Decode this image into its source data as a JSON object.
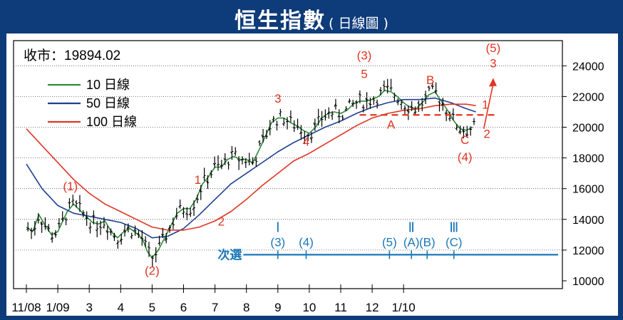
{
  "title": {
    "main": "恒生指數",
    "sub": "( 日線圖 )"
  },
  "close_label": "收市：19894.02",
  "legend": [
    {
      "name": "10 日線",
      "color": "#2e8b3a"
    },
    {
      "name": "50 日線",
      "color": "#1f3f91"
    },
    {
      "name": "100 日線",
      "color": "#e03524"
    }
  ],
  "colors": {
    "background": "#0e3b7a",
    "candle": "#000000",
    "wave_label": "#e03524",
    "timeline": "#1a78b8",
    "resistance": "#e03524"
  },
  "chart_data": {
    "type": "line",
    "x_tick_labels": [
      "11/08",
      "1/09",
      "3",
      "4",
      "5",
      "6",
      "7",
      "8",
      "9",
      "10",
      "11",
      "12",
      "1/10"
    ],
    "ylim": [
      10000,
      25000
    ],
    "y_ticks": [
      10000,
      12000,
      14000,
      16000,
      18000,
      20000,
      22000,
      24000
    ],
    "grid": "horizontal",
    "legend_position": "top-left",
    "close": 19894.02,
    "series": [
      {
        "name": "10 日線",
        "color": "#2e8b3a",
        "width": 1.6,
        "points": [
          [
            0.0,
            13500
          ],
          [
            0.2,
            13200
          ],
          [
            0.4,
            14300
          ],
          [
            0.6,
            13600
          ],
          [
            0.8,
            13000
          ],
          [
            1.0,
            13200
          ],
          [
            1.3,
            14500
          ],
          [
            1.5,
            15000
          ],
          [
            1.7,
            14600
          ],
          [
            1.9,
            14200
          ],
          [
            2.1,
            13800
          ],
          [
            2.3,
            13700
          ],
          [
            2.5,
            13900
          ],
          [
            2.7,
            13200
          ],
          [
            2.9,
            12800
          ],
          [
            3.1,
            13200
          ],
          [
            3.3,
            13400
          ],
          [
            3.5,
            13100
          ],
          [
            3.7,
            12700
          ],
          [
            3.85,
            11900
          ],
          [
            4.0,
            11500
          ],
          [
            4.2,
            12000
          ],
          [
            4.4,
            12800
          ],
          [
            4.6,
            13600
          ],
          [
            4.8,
            14400
          ],
          [
            5.0,
            14700
          ],
          [
            5.2,
            14700
          ],
          [
            5.4,
            15300
          ],
          [
            5.6,
            16300
          ],
          [
            5.8,
            16800
          ],
          [
            6.0,
            17400
          ],
          [
            6.2,
            17400
          ],
          [
            6.4,
            17900
          ],
          [
            6.6,
            18100
          ],
          [
            6.8,
            17900
          ],
          [
            7.0,
            17900
          ],
          [
            7.2,
            17700
          ],
          [
            7.4,
            18500
          ],
          [
            7.6,
            19400
          ],
          [
            7.8,
            20300
          ],
          [
            8.0,
            20600
          ],
          [
            8.2,
            20600
          ],
          [
            8.4,
            20300
          ],
          [
            8.6,
            20100
          ],
          [
            8.8,
            19800
          ],
          [
            9.0,
            19600
          ],
          [
            9.2,
            20000
          ],
          [
            9.4,
            20600
          ],
          [
            9.6,
            20900
          ],
          [
            9.8,
            21000
          ],
          [
            10.0,
            20900
          ],
          [
            10.2,
            21100
          ],
          [
            10.4,
            21500
          ],
          [
            10.6,
            21700
          ],
          [
            10.8,
            21700
          ],
          [
            11.0,
            21800
          ],
          [
            11.2,
            22000
          ],
          [
            11.4,
            22400
          ],
          [
            11.6,
            22300
          ],
          [
            11.8,
            22000
          ],
          [
            12.0,
            21600
          ],
          [
            12.2,
            21300
          ],
          [
            12.4,
            21200
          ],
          [
            12.6,
            21600
          ],
          [
            12.8,
            22100
          ],
          [
            13.0,
            22300
          ],
          [
            13.2,
            21700
          ],
          [
            13.4,
            21100
          ],
          [
            13.6,
            20400
          ],
          [
            13.8,
            19900
          ],
          [
            14.0,
            19800
          ],
          [
            14.2,
            20000
          ]
        ]
      },
      {
        "name": "50 日線",
        "color": "#1f3f91",
        "width": 1.6,
        "points": [
          [
            0.0,
            17600
          ],
          [
            0.5,
            16000
          ],
          [
            1.0,
            14900
          ],
          [
            1.5,
            14400
          ],
          [
            2.0,
            14200
          ],
          [
            2.5,
            14000
          ],
          [
            3.0,
            13800
          ],
          [
            3.5,
            13400
          ],
          [
            4.0,
            12800
          ],
          [
            4.5,
            12900
          ],
          [
            5.0,
            13400
          ],
          [
            5.5,
            14300
          ],
          [
            6.0,
            15300
          ],
          [
            6.5,
            16300
          ],
          [
            7.0,
            17000
          ],
          [
            7.5,
            17700
          ],
          [
            8.0,
            18400
          ],
          [
            8.5,
            19000
          ],
          [
            9.0,
            19500
          ],
          [
            9.5,
            20000
          ],
          [
            10.0,
            20400
          ],
          [
            10.5,
            20900
          ],
          [
            11.0,
            21300
          ],
          [
            11.5,
            21600
          ],
          [
            12.0,
            21800
          ],
          [
            12.5,
            21800
          ],
          [
            13.0,
            21900
          ],
          [
            13.5,
            21600
          ],
          [
            14.0,
            21200
          ],
          [
            14.3,
            21000
          ]
        ]
      },
      {
        "name": "100 日線",
        "color": "#e03524",
        "width": 1.6,
        "points": [
          [
            0.0,
            19900
          ],
          [
            0.5,
            18800
          ],
          [
            1.0,
            17700
          ],
          [
            1.5,
            16600
          ],
          [
            2.0,
            15700
          ],
          [
            2.5,
            15000
          ],
          [
            3.0,
            14500
          ],
          [
            3.5,
            14000
          ],
          [
            4.0,
            13500
          ],
          [
            4.5,
            13300
          ],
          [
            5.0,
            13300
          ],
          [
            5.5,
            13500
          ],
          [
            6.0,
            13900
          ],
          [
            6.5,
            14500
          ],
          [
            7.0,
            15300
          ],
          [
            7.5,
            16200
          ],
          [
            8.0,
            17000
          ],
          [
            8.5,
            17800
          ],
          [
            9.0,
            18300
          ],
          [
            9.5,
            18900
          ],
          [
            10.0,
            19500
          ],
          [
            10.5,
            20100
          ],
          [
            11.0,
            20600
          ],
          [
            11.5,
            20900
          ],
          [
            12.0,
            21100
          ],
          [
            12.5,
            21200
          ],
          [
            13.0,
            21400
          ],
          [
            13.5,
            21500
          ],
          [
            14.0,
            21500
          ],
          [
            14.3,
            21400
          ]
        ]
      }
    ],
    "annotations": [
      {
        "text": "(1)",
        "x": 1.4,
        "y": 15900,
        "color": "#e03524"
      },
      {
        "text": "(2)",
        "x": 4.0,
        "y": 10400,
        "color": "#e03524"
      },
      {
        "text": "1",
        "x": 5.45,
        "y": 16300,
        "color": "#e03524"
      },
      {
        "text": "2",
        "x": 6.2,
        "y": 13600,
        "color": "#e03524"
      },
      {
        "text": "3",
        "x": 8.0,
        "y": 21600,
        "color": "#e03524"
      },
      {
        "text": "4",
        "x": 8.9,
        "y": 18800,
        "color": "#e03524"
      },
      {
        "text": "(3)",
        "x": 10.75,
        "y": 24400,
        "color": "#e03524"
      },
      {
        "text": "5",
        "x": 10.75,
        "y": 23200,
        "color": "#e03524"
      },
      {
        "text": "A",
        "x": 11.6,
        "y": 19900,
        "color": "#e03524"
      },
      {
        "text": "B",
        "x": 12.85,
        "y": 22800,
        "color": "#e03524"
      },
      {
        "text": "C",
        "x": 13.95,
        "y": 18900,
        "color": "#e03524"
      },
      {
        "text": "(4)",
        "x": 13.95,
        "y": 17800,
        "color": "#e03524"
      },
      {
        "text": "1",
        "x": 14.6,
        "y": 21200,
        "color": "#e03524"
      },
      {
        "text": "2",
        "x": 14.65,
        "y": 19300,
        "color": "#e03524"
      },
      {
        "text": "3",
        "x": 14.85,
        "y": 23900,
        "color": "#e03524"
      },
      {
        "text": "(5)",
        "x": 14.85,
        "y": 24900,
        "color": "#e03524"
      }
    ],
    "resistance_level": 20800,
    "projection_arrow": {
      "from": [
        14.55,
        19900
      ],
      "to": [
        14.85,
        23200
      ]
    },
    "secondary_timeline": {
      "label": "次選",
      "y": 11700,
      "markers": [
        {
          "x": 8.0,
          "label": "(3)",
          "roman": "Ⅰ"
        },
        {
          "x": 8.9,
          "label": "(4)"
        },
        {
          "x": 11.55,
          "label": "(5)"
        },
        {
          "x": 12.25,
          "label": "(A)",
          "roman": "Ⅱ"
        },
        {
          "x": 12.75,
          "label": "(B)"
        },
        {
          "x": 13.6,
          "label": "(C)",
          "roman": "Ⅲ"
        }
      ]
    }
  }
}
